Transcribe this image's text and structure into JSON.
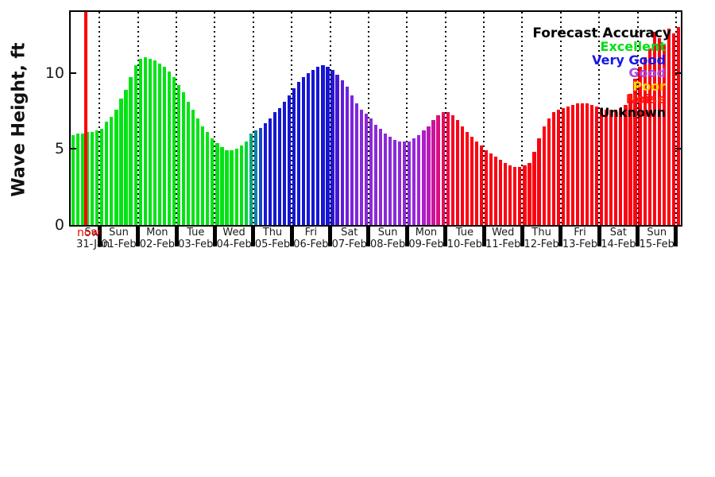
{
  "chart_data": {
    "type": "bar",
    "title": "",
    "ylabel": "Wave Height, ft",
    "ylim": [
      0,
      14
    ],
    "yticks": [
      0,
      5,
      10
    ],
    "grid": "vertical dotted day-boundary lines",
    "legend_position": "top-right",
    "now_marker": {
      "label": "now",
      "color": "#FF0000",
      "after_bar_index": 3
    },
    "legend": {
      "title": "Forecast Accuracy",
      "entries": [
        {
          "label": "Excellent",
          "color": "#00DF10"
        },
        {
          "label": "Very Good",
          "color": "#1515E8"
        },
        {
          "label": "Good",
          "color": "#A845E8"
        },
        {
          "label": "Poor",
          "color": "#FFD404"
        },
        {
          "label": "Noise",
          "color": "#FE1E11"
        },
        {
          "label": "Unknown",
          "color": "#000000"
        }
      ]
    },
    "days": [
      {
        "day": "Sat",
        "date": "31-Jan",
        "colors": "#00E415",
        "values": [
          5.9,
          6.0,
          6.0,
          6.1,
          6.1,
          6.2
        ]
      },
      {
        "day": "Sun",
        "date": "01-Feb",
        "colors": "#00E415",
        "values": [
          6.3,
          6.8,
          7.1,
          7.6,
          8.3,
          8.9,
          9.7,
          10.5
        ]
      },
      {
        "day": "Mon",
        "date": "02-Feb",
        "colors": "#00E415",
        "values": [
          10.9,
          11.0,
          10.9,
          10.8,
          10.6,
          10.4,
          10.1,
          9.7
        ]
      },
      {
        "day": "Tue",
        "date": "03-Feb",
        "colors": "#00E415",
        "values": [
          9.2,
          8.7,
          8.1,
          7.6,
          7.0,
          6.5,
          6.1,
          5.7
        ]
      },
      {
        "day": "Wed",
        "date": "04-Feb",
        "colors": [
          "#00E415",
          "#00E415",
          "#00E415",
          "#00E415",
          "#00E415",
          "#00E415",
          "#00D43C",
          "#00A87D"
        ],
        "values": [
          5.4,
          5.1,
          4.9,
          4.9,
          5.0,
          5.2,
          5.5,
          6.0
        ]
      },
      {
        "day": "Thu",
        "date": "05-Feb",
        "colors": [
          "#0E7FA8",
          "#1847CB",
          "#1619D3",
          "#1616D3",
          "#1616D3",
          "#1616D3",
          "#1616D3",
          "#1616D3"
        ],
        "values": [
          6.2,
          6.4,
          6.7,
          7.0,
          7.4,
          7.7,
          8.1,
          8.5
        ]
      },
      {
        "day": "Fri",
        "date": "06-Feb",
        "colors": "#1616D3",
        "values": [
          9.0,
          9.4,
          9.7,
          10.0,
          10.2,
          10.4,
          10.5,
          10.4
        ]
      },
      {
        "day": "Sat",
        "date": "07-Feb",
        "colors": [
          "#2915D5",
          "#4418D7",
          "#5F1CD8",
          "#7021DA",
          "#7C25DA",
          "#8327DA",
          "#8828DA",
          "#8B29D9"
        ],
        "values": [
          10.2,
          9.9,
          9.5,
          9.1,
          8.5,
          8.0,
          7.6,
          7.3
        ]
      },
      {
        "day": "Sun",
        "date": "08-Feb",
        "colors": "#8D2AD9",
        "values": [
          7.0,
          6.6,
          6.3,
          6.0,
          5.8,
          5.6,
          5.5,
          5.5
        ]
      },
      {
        "day": "Mon",
        "date": "09-Feb",
        "colors": [
          "#9029D9",
          "#9527D8",
          "#9F23D4",
          "#AC1EC9",
          "#BC18B6",
          "#CC139D",
          "#DA0F80",
          "#E60B60"
        ],
        "values": [
          5.5,
          5.7,
          5.9,
          6.2,
          6.5,
          6.9,
          7.2,
          7.4
        ]
      },
      {
        "day": "Tue",
        "date": "10-Feb",
        "colors": [
          "#EF0841",
          "#F60527",
          "#FA0318",
          "#FC0213",
          "#FD0211",
          "#FD0211",
          "#FD0211",
          "#FD0211"
        ],
        "values": [
          7.4,
          7.2,
          6.9,
          6.5,
          6.1,
          5.8,
          5.5,
          5.2
        ]
      },
      {
        "day": "Wed",
        "date": "11-Feb",
        "colors": "#FD0211",
        "values": [
          4.9,
          4.7,
          4.5,
          4.3,
          4.1,
          3.9,
          3.8,
          3.8
        ]
      },
      {
        "day": "Thu",
        "date": "12-Feb",
        "colors": "#FD0211",
        "values": [
          3.9,
          4.1,
          4.8,
          5.7,
          6.5,
          7.0,
          7.4,
          7.6
        ]
      },
      {
        "day": "Fri",
        "date": "13-Feb",
        "colors": "#FD0211",
        "values": [
          7.7,
          7.8,
          7.9,
          8.0,
          8.0,
          8.0,
          7.9,
          7.8
        ]
      },
      {
        "day": "Sat",
        "date": "14-Feb",
        "colors": "#FD0211",
        "values": [
          7.7,
          7.6,
          7.6,
          7.6,
          7.7,
          7.9,
          8.6,
          9.6
        ]
      },
      {
        "day": "Sun",
        "date": "15-Feb",
        "colors": "#FD0211",
        "values": [
          10.4,
          11.0,
          11.6,
          12.7,
          12.3,
          11.9,
          12.9,
          12.6
        ]
      },
      {
        "day": "",
        "date": "",
        "colors": "#FD0211",
        "values": [
          13.0
        ]
      }
    ]
  }
}
